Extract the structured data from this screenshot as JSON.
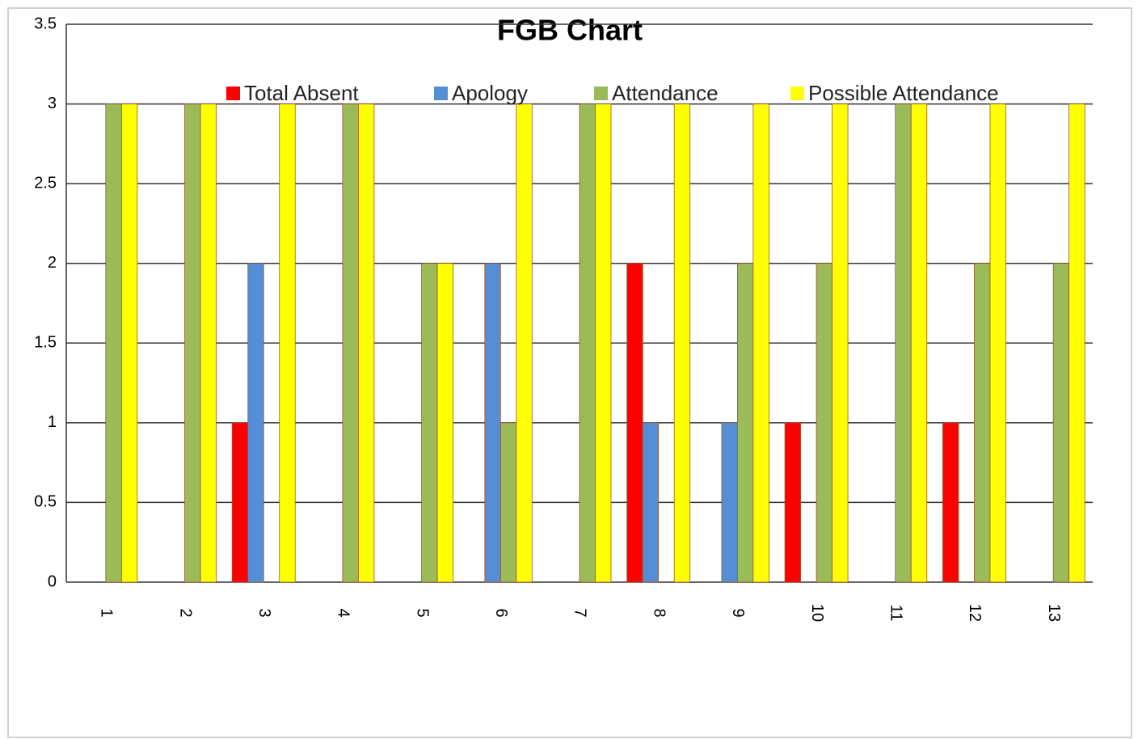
{
  "chart_data": {
    "type": "bar",
    "title": "FGB Chart",
    "categories": [
      "1",
      "2",
      "3",
      "4",
      "5",
      "6",
      "7",
      "8",
      "9",
      "10",
      "11",
      "12",
      "13"
    ],
    "series": [
      {
        "name": "Total Absent",
        "color": "#ff0000",
        "values": [
          0,
          0,
          1,
          0,
          0,
          0,
          0,
          2,
          0,
          1,
          0,
          1,
          0
        ]
      },
      {
        "name": "Apology",
        "color": "#558ed5",
        "values": [
          0,
          0,
          2,
          0,
          0,
          2,
          0,
          1,
          1,
          0,
          0,
          0,
          0
        ]
      },
      {
        "name": "Attendance",
        "color": "#9bbb59",
        "values": [
          3,
          3,
          0,
          3,
          2,
          1,
          3,
          0,
          2,
          2,
          3,
          2,
          2
        ]
      },
      {
        "name": "Possible Attendance",
        "color": "#ffff00",
        "values": [
          3,
          3,
          3,
          3,
          2,
          3,
          3,
          3,
          3,
          3,
          3,
          3,
          3
        ]
      }
    ],
    "ylim": [
      0,
      3.5
    ],
    "yticks": [
      0,
      0.5,
      1,
      1.5,
      2,
      2.5,
      3,
      3.5
    ],
    "grid": true,
    "legend": "top"
  }
}
